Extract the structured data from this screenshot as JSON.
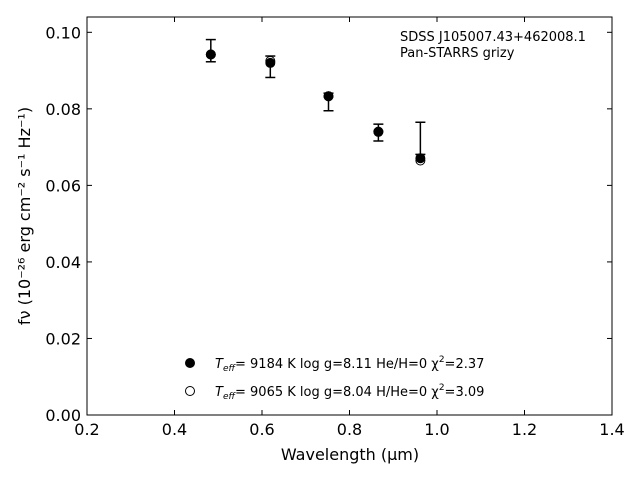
{
  "chart_data": {
    "type": "scatter",
    "xlabel": "Wavelength (μm)",
    "ylabel": "fν (10⁻²⁶ erg cm⁻² s⁻¹ Hz⁻¹)",
    "xlim": [
      0.2,
      1.4
    ],
    "ylim": [
      0.0,
      0.104
    ],
    "x_ticks": [
      0.2,
      0.4,
      0.6,
      0.8,
      1.0,
      1.2,
      1.4
    ],
    "y_ticks": [
      0.0,
      0.02,
      0.04,
      0.06,
      0.08,
      0.1
    ],
    "grid": false,
    "annotation": {
      "line1": "SDSS J105007.43+462008.1",
      "line2": "Pan-STARRS grizy"
    },
    "observed": {
      "x": [
        0.483,
        0.619,
        0.752,
        0.866,
        0.962
      ],
      "y": [
        0.0952,
        0.091,
        0.0818,
        0.0738,
        0.0723
      ],
      "err": [
        0.0029,
        0.0028,
        0.0023,
        0.0022,
        0.0042
      ]
    },
    "series": [
      {
        "label_pre": "T",
        "label_sub": "eff",
        "label_mid": "=  9184 K  log g=8.11  He/H=0  χ",
        "label_sup": "2",
        "label_post": "=2.37",
        "marker": "filled",
        "x": [
          0.483,
          0.619,
          0.752,
          0.866,
          0.962
        ],
        "y": [
          0.0942,
          0.092,
          0.0833,
          0.074,
          0.0671
        ]
      },
      {
        "label_pre": "T",
        "label_sub": "eff",
        "label_mid": "=  9065 K  log g=8.04  H/He=0  χ",
        "label_sup": "2",
        "label_post": "=3.09",
        "marker": "open",
        "x": [
          0.483,
          0.619,
          0.752,
          0.866,
          0.962
        ],
        "y": [
          0.0942,
          0.0925,
          0.0833,
          0.074,
          0.0665
        ]
      }
    ]
  }
}
